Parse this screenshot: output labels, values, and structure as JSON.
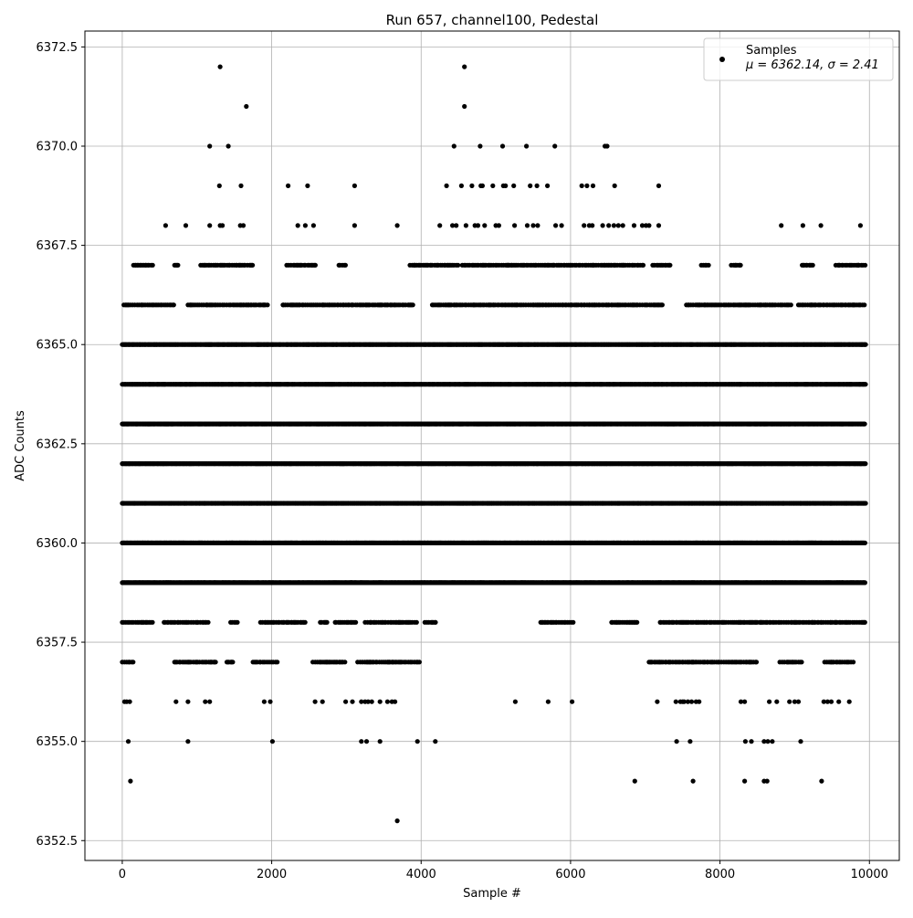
{
  "chart_data": {
    "type": "scatter",
    "title": "Run 657, channel100, Pedestal",
    "xlabel": "Sample #",
    "ylabel": "ADC Counts",
    "xlim": [
      -500,
      10400
    ],
    "ylim": [
      6352.0,
      6372.9
    ],
    "x_ticks": [
      0,
      2000,
      4000,
      6000,
      8000,
      10000
    ],
    "y_ticks": [
      6352.5,
      6355.0,
      6357.5,
      6360.0,
      6362.5,
      6365.0,
      6367.5,
      6370.0,
      6372.5
    ],
    "x_tick_labels": [
      "0",
      "2000",
      "4000",
      "6000",
      "8000",
      "10000"
    ],
    "y_tick_labels": [
      "6352.5",
      "6355.0",
      "6357.5",
      "6360.0",
      "6362.5",
      "6365.0",
      "6367.5",
      "6370.0",
      "6372.5"
    ],
    "grid": true,
    "legend_position": "top-right",
    "legend": {
      "series_label": "Samples",
      "stats_label": "μ = 6362.14, σ = 2.41"
    },
    "series_color": "#000000",
    "n_samples": 10000,
    "mean": 6362.14,
    "sigma": 2.41,
    "dense_levels": [
      6359,
      6360,
      6361,
      6362,
      6363,
      6364,
      6365
    ],
    "sparse_levels": {
      "6366": [
        [
          20,
          700
        ],
        [
          880,
          1950
        ],
        [
          2150,
          3900
        ],
        [
          4150,
          7250
        ],
        [
          7550,
          8950
        ],
        [
          9050,
          9950
        ]
      ],
      "6367": [
        [
          150,
          420
        ],
        [
          700,
          750
        ],
        [
          1050,
          1750
        ],
        [
          2200,
          2600
        ],
        [
          2900,
          3000
        ],
        [
          3850,
          4500
        ],
        [
          4550,
          7000
        ],
        [
          7100,
          7350
        ],
        [
          7750,
          7850
        ],
        [
          8150,
          8300
        ],
        [
          9100,
          9250
        ],
        [
          9550,
          9950
        ]
      ],
      "6358": [
        [
          0,
          420
        ],
        [
          560,
          1150
        ],
        [
          1450,
          1550
        ],
        [
          1850,
          2450
        ],
        [
          2650,
          2750
        ],
        [
          2850,
          3150
        ],
        [
          3250,
          3950
        ],
        [
          4050,
          4200
        ],
        [
          5600,
          6050
        ],
        [
          6550,
          6900
        ],
        [
          7200,
          9950
        ]
      ],
      "6357": [
        [
          0,
          150
        ],
        [
          700,
          1250
        ],
        [
          1400,
          1500
        ],
        [
          1750,
          2100
        ],
        [
          2550,
          3000
        ],
        [
          3150,
          4000
        ],
        [
          7050,
          8500
        ],
        [
          8800,
          9100
        ],
        [
          9400,
          9800
        ]
      ]
    },
    "outliers": [
      {
        "x": 1310,
        "y": 6372
      },
      {
        "x": 4580,
        "y": 6372
      },
      {
        "x": 1660,
        "y": 6371
      },
      {
        "x": 4580,
        "y": 6371
      },
      {
        "x": 1170,
        "y": 6370
      },
      {
        "x": 1420,
        "y": 6370
      },
      {
        "x": 4440,
        "y": 6370
      },
      {
        "x": 4790,
        "y": 6370
      },
      {
        "x": 5090,
        "y": 6370
      },
      {
        "x": 5410,
        "y": 6370
      },
      {
        "x": 5790,
        "y": 6370
      },
      {
        "x": 6460,
        "y": 6370
      },
      {
        "x": 6490,
        "y": 6370
      },
      {
        "x": 1300,
        "y": 6369
      },
      {
        "x": 1590,
        "y": 6369
      },
      {
        "x": 2220,
        "y": 6369
      },
      {
        "x": 2480,
        "y": 6369
      },
      {
        "x": 3110,
        "y": 6369
      },
      {
        "x": 4340,
        "y": 6369
      },
      {
        "x": 4540,
        "y": 6369
      },
      {
        "x": 4680,
        "y": 6369
      },
      {
        "x": 4800,
        "y": 6369
      },
      {
        "x": 4820,
        "y": 6369
      },
      {
        "x": 4960,
        "y": 6369
      },
      {
        "x": 5100,
        "y": 6369
      },
      {
        "x": 5130,
        "y": 6369
      },
      {
        "x": 5240,
        "y": 6369
      },
      {
        "x": 5460,
        "y": 6369
      },
      {
        "x": 5550,
        "y": 6369
      },
      {
        "x": 5690,
        "y": 6369
      },
      {
        "x": 6150,
        "y": 6369
      },
      {
        "x": 6220,
        "y": 6369
      },
      {
        "x": 6300,
        "y": 6369
      },
      {
        "x": 6590,
        "y": 6369
      },
      {
        "x": 7180,
        "y": 6369
      },
      {
        "x": 580,
        "y": 6368
      },
      {
        "x": 850,
        "y": 6368
      },
      {
        "x": 1170,
        "y": 6368
      },
      {
        "x": 1310,
        "y": 6368
      },
      {
        "x": 1340,
        "y": 6368
      },
      {
        "x": 1580,
        "y": 6368
      },
      {
        "x": 1620,
        "y": 6368
      },
      {
        "x": 2350,
        "y": 6368
      },
      {
        "x": 2450,
        "y": 6368
      },
      {
        "x": 2560,
        "y": 6368
      },
      {
        "x": 3110,
        "y": 6368
      },
      {
        "x": 3680,
        "y": 6368
      },
      {
        "x": 4250,
        "y": 6368
      },
      {
        "x": 4420,
        "y": 6368
      },
      {
        "x": 4470,
        "y": 6368
      },
      {
        "x": 4600,
        "y": 6368
      },
      {
        "x": 4720,
        "y": 6368
      },
      {
        "x": 4760,
        "y": 6368
      },
      {
        "x": 4850,
        "y": 6368
      },
      {
        "x": 5000,
        "y": 6368
      },
      {
        "x": 5040,
        "y": 6368
      },
      {
        "x": 5250,
        "y": 6368
      },
      {
        "x": 5420,
        "y": 6368
      },
      {
        "x": 5500,
        "y": 6368
      },
      {
        "x": 5560,
        "y": 6368
      },
      {
        "x": 5800,
        "y": 6368
      },
      {
        "x": 5880,
        "y": 6368
      },
      {
        "x": 6180,
        "y": 6368
      },
      {
        "x": 6250,
        "y": 6368
      },
      {
        "x": 6290,
        "y": 6368
      },
      {
        "x": 6430,
        "y": 6368
      },
      {
        "x": 6510,
        "y": 6368
      },
      {
        "x": 6580,
        "y": 6368
      },
      {
        "x": 6640,
        "y": 6368
      },
      {
        "x": 6700,
        "y": 6368
      },
      {
        "x": 6850,
        "y": 6368
      },
      {
        "x": 6960,
        "y": 6368
      },
      {
        "x": 7010,
        "y": 6368
      },
      {
        "x": 7050,
        "y": 6368
      },
      {
        "x": 7180,
        "y": 6368
      },
      {
        "x": 8820,
        "y": 6368
      },
      {
        "x": 9110,
        "y": 6368
      },
      {
        "x": 9350,
        "y": 6368
      },
      {
        "x": 9880,
        "y": 6368
      },
      {
        "x": 30,
        "y": 6356
      },
      {
        "x": 60,
        "y": 6356
      },
      {
        "x": 100,
        "y": 6356
      },
      {
        "x": 720,
        "y": 6356
      },
      {
        "x": 880,
        "y": 6356
      },
      {
        "x": 1110,
        "y": 6356
      },
      {
        "x": 1170,
        "y": 6356
      },
      {
        "x": 1900,
        "y": 6356
      },
      {
        "x": 1980,
        "y": 6356
      },
      {
        "x": 2580,
        "y": 6356
      },
      {
        "x": 2680,
        "y": 6356
      },
      {
        "x": 2990,
        "y": 6356
      },
      {
        "x": 3080,
        "y": 6356
      },
      {
        "x": 3200,
        "y": 6356
      },
      {
        "x": 3250,
        "y": 6356
      },
      {
        "x": 3290,
        "y": 6356
      },
      {
        "x": 3340,
        "y": 6356
      },
      {
        "x": 3450,
        "y": 6356
      },
      {
        "x": 3550,
        "y": 6356
      },
      {
        "x": 3610,
        "y": 6356
      },
      {
        "x": 3650,
        "y": 6356
      },
      {
        "x": 5260,
        "y": 6356
      },
      {
        "x": 5700,
        "y": 6356
      },
      {
        "x": 6020,
        "y": 6356
      },
      {
        "x": 7160,
        "y": 6356
      },
      {
        "x": 7410,
        "y": 6356
      },
      {
        "x": 7470,
        "y": 6356
      },
      {
        "x": 7500,
        "y": 6356
      },
      {
        "x": 7520,
        "y": 6356
      },
      {
        "x": 7570,
        "y": 6356
      },
      {
        "x": 7620,
        "y": 6356
      },
      {
        "x": 7680,
        "y": 6356
      },
      {
        "x": 7720,
        "y": 6356
      },
      {
        "x": 8280,
        "y": 6356
      },
      {
        "x": 8330,
        "y": 6356
      },
      {
        "x": 8660,
        "y": 6356
      },
      {
        "x": 8760,
        "y": 6356
      },
      {
        "x": 8930,
        "y": 6356
      },
      {
        "x": 9000,
        "y": 6356
      },
      {
        "x": 9050,
        "y": 6356
      },
      {
        "x": 9390,
        "y": 6356
      },
      {
        "x": 9440,
        "y": 6356
      },
      {
        "x": 9490,
        "y": 6356
      },
      {
        "x": 9590,
        "y": 6356
      },
      {
        "x": 9730,
        "y": 6356
      },
      {
        "x": 80,
        "y": 6355
      },
      {
        "x": 880,
        "y": 6355
      },
      {
        "x": 2010,
        "y": 6355
      },
      {
        "x": 3200,
        "y": 6355
      },
      {
        "x": 3270,
        "y": 6355
      },
      {
        "x": 3450,
        "y": 6355
      },
      {
        "x": 3950,
        "y": 6355
      },
      {
        "x": 4190,
        "y": 6355
      },
      {
        "x": 7420,
        "y": 6355
      },
      {
        "x": 7600,
        "y": 6355
      },
      {
        "x": 8340,
        "y": 6355
      },
      {
        "x": 8420,
        "y": 6355
      },
      {
        "x": 8590,
        "y": 6355
      },
      {
        "x": 8640,
        "y": 6355
      },
      {
        "x": 8700,
        "y": 6355
      },
      {
        "x": 9080,
        "y": 6355
      },
      {
        "x": 110,
        "y": 6354
      },
      {
        "x": 6860,
        "y": 6354
      },
      {
        "x": 7640,
        "y": 6354
      },
      {
        "x": 8330,
        "y": 6354
      },
      {
        "x": 8590,
        "y": 6354
      },
      {
        "x": 8630,
        "y": 6354
      },
      {
        "x": 9360,
        "y": 6354
      },
      {
        "x": 3680,
        "y": 6353
      }
    ]
  }
}
